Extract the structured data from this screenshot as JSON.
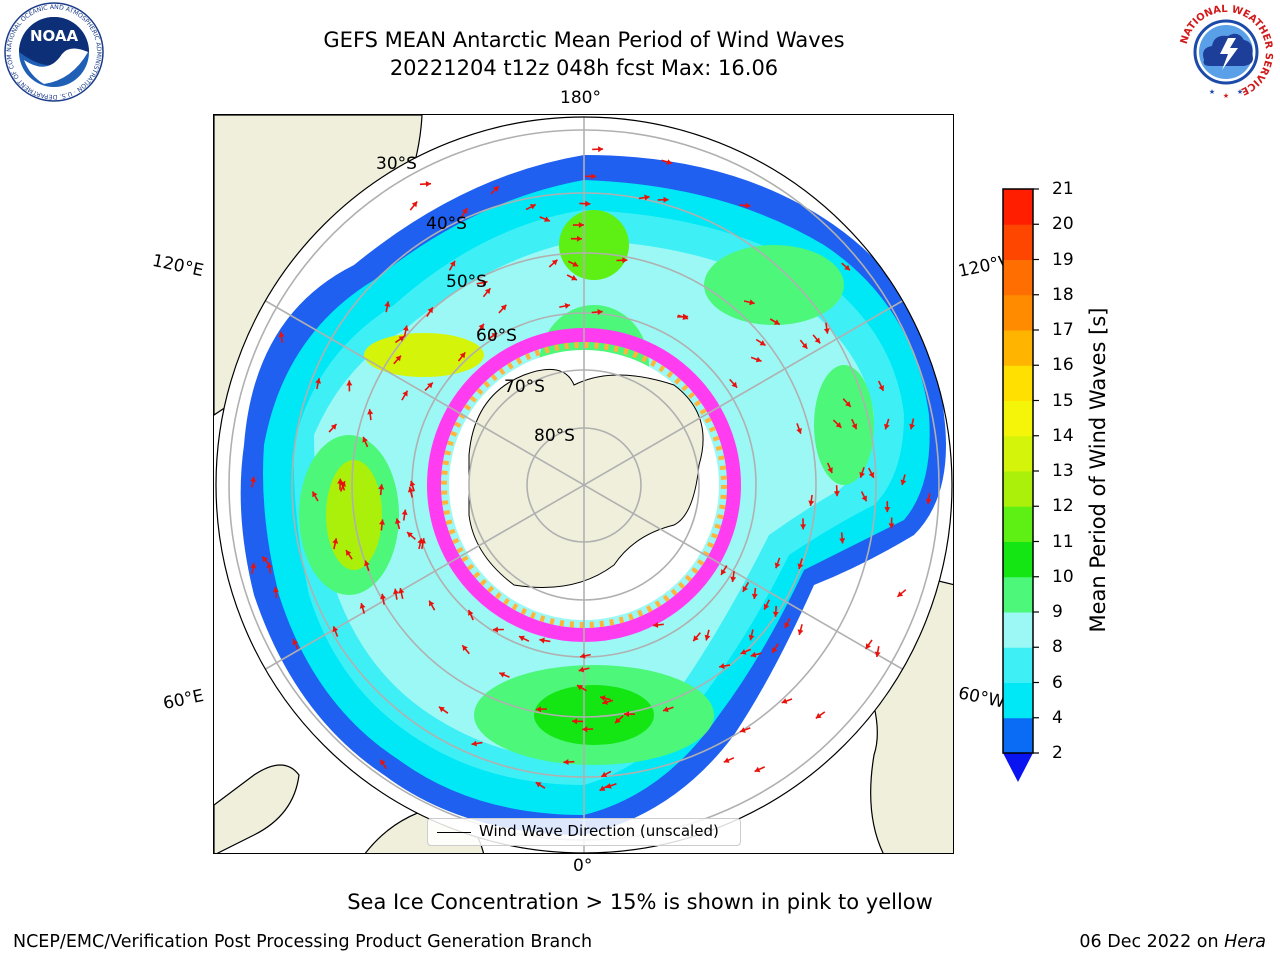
{
  "header": {
    "title_line1": "GEFS MEAN Antarctic Mean Period of Wind Waves",
    "title_line2": "20221204 t12z 048h fcst   Max: 16.06"
  },
  "logos": {
    "left": "NOAA",
    "left_ring_text": "NATIONAL OCEANIC AND ATMOSPHERIC ADMINISTRATION · U.S. DEPARTMENT OF COMMERCE",
    "right_ring_text": "NATIONAL WEATHER SERVICE"
  },
  "map": {
    "projection": "south-polar-stereographic",
    "lon_labels": {
      "top": "180°",
      "bottom": "0°",
      "left_upper": "120°E",
      "left_lower": "60°E",
      "right_upper": "120°W",
      "right_lower": "60°W"
    },
    "lat_labels": [
      "30°S",
      "40°S",
      "50°S",
      "60°S",
      "70°S",
      "80°S"
    ],
    "legend_label": "Wind Wave Direction (unscaled)",
    "arrow_color": "#e8120c",
    "land_color": "#efefdc"
  },
  "colorbar": {
    "label": "Mean Period of Wind Waves [s]",
    "ticks": [
      "2",
      "4",
      "6",
      "8",
      "9",
      "10",
      "11",
      "12",
      "13",
      "14",
      "15",
      "16",
      "17",
      "18",
      "19",
      "20",
      "21"
    ],
    "colors": [
      "#0a6cf5",
      "#00e8f5",
      "#3ef0f5",
      "#9cf8f5",
      "#4cf77a",
      "#14e614",
      "#5ef014",
      "#aaf00a",
      "#d4f50a",
      "#f5f50a",
      "#ffe000",
      "#ffb400",
      "#ff8c00",
      "#ff6e00",
      "#ff4600",
      "#ff1e00"
    ],
    "under_color": "#0a14f0"
  },
  "notes": {
    "ice_note": "Sea Ice Concentration > 15% is shown in pink to yellow",
    "footer_left": "NCEP/EMC/Verification Post Processing Product Generation Branch",
    "footer_right_date": "06 Dec 2022 on",
    "footer_right_host": "Hera"
  }
}
